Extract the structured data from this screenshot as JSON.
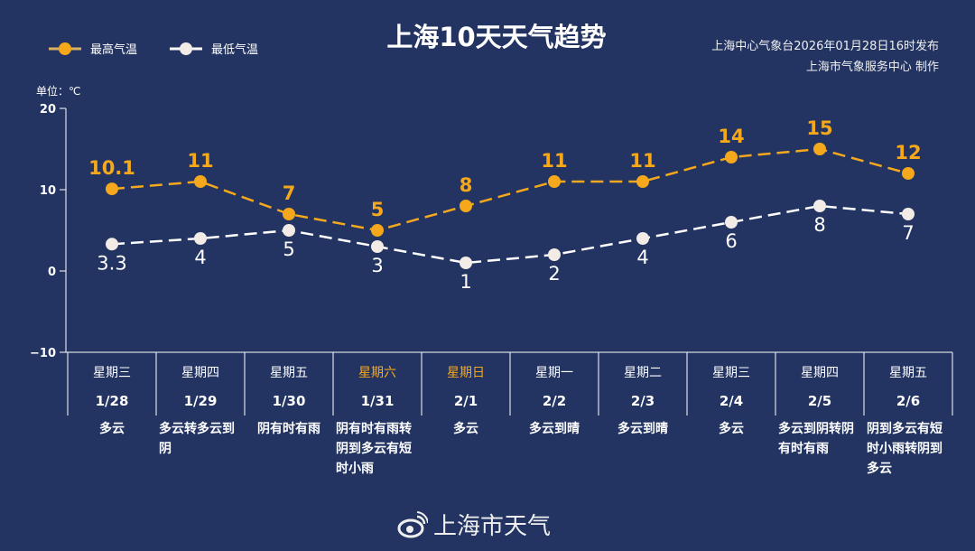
{
  "title": "上海10天天气趋势",
  "publisher": {
    "line1": "上海中心气象台2026年01月28日16时发布",
    "line2": "上海市气象服务中心 制作"
  },
  "footer": "上海市天气",
  "colors": {
    "high": "#f5a81c",
    "low": "#f3ece6",
    "bg": "#233462"
  },
  "chart_data": {
    "type": "line",
    "title": "上海10天天气趋势",
    "ylabel": "单位：℃",
    "ylim": [
      -10,
      20
    ],
    "yticks": [
      "20",
      "10",
      "0",
      "−10"
    ],
    "yticks_values": [
      20,
      10,
      0,
      -10
    ],
    "legend": "top-left",
    "categories": [
      "1/28",
      "1/29",
      "1/30",
      "1/31",
      "2/1",
      "2/2",
      "2/3",
      "2/4",
      "2/5",
      "2/6"
    ],
    "weekdays": [
      "星期三",
      "星期四",
      "星期五",
      "星期六",
      "星期日",
      "星期一",
      "星期二",
      "星期三",
      "星期四",
      "星期五"
    ],
    "weekend": [
      false,
      false,
      false,
      true,
      true,
      false,
      false,
      false,
      false,
      false
    ],
    "weather": [
      "多云",
      "多云转多云到阴",
      "阴有时有雨",
      "阴有时有雨转阴到多云有短时小雨",
      "多云",
      "多云到晴",
      "多云到晴",
      "多云",
      "多云到阴转阴有时有雨",
      "阴到多云有短时小雨转阴到多云"
    ],
    "series": [
      {
        "name": "最高气温",
        "values": [
          10.1,
          11,
          7,
          5,
          8,
          11,
          11,
          14,
          15,
          12
        ],
        "labels": [
          "10.1",
          "11",
          "7",
          "5",
          "8",
          "11",
          "11",
          "14",
          "15",
          "12"
        ]
      },
      {
        "name": "最低气温",
        "values": [
          3.3,
          4,
          5,
          3,
          1,
          2,
          4,
          6,
          8,
          7
        ],
        "labels": [
          "3.3",
          "4",
          "5",
          "3",
          "1",
          "2",
          "4",
          "6",
          "8",
          "7"
        ]
      }
    ]
  }
}
